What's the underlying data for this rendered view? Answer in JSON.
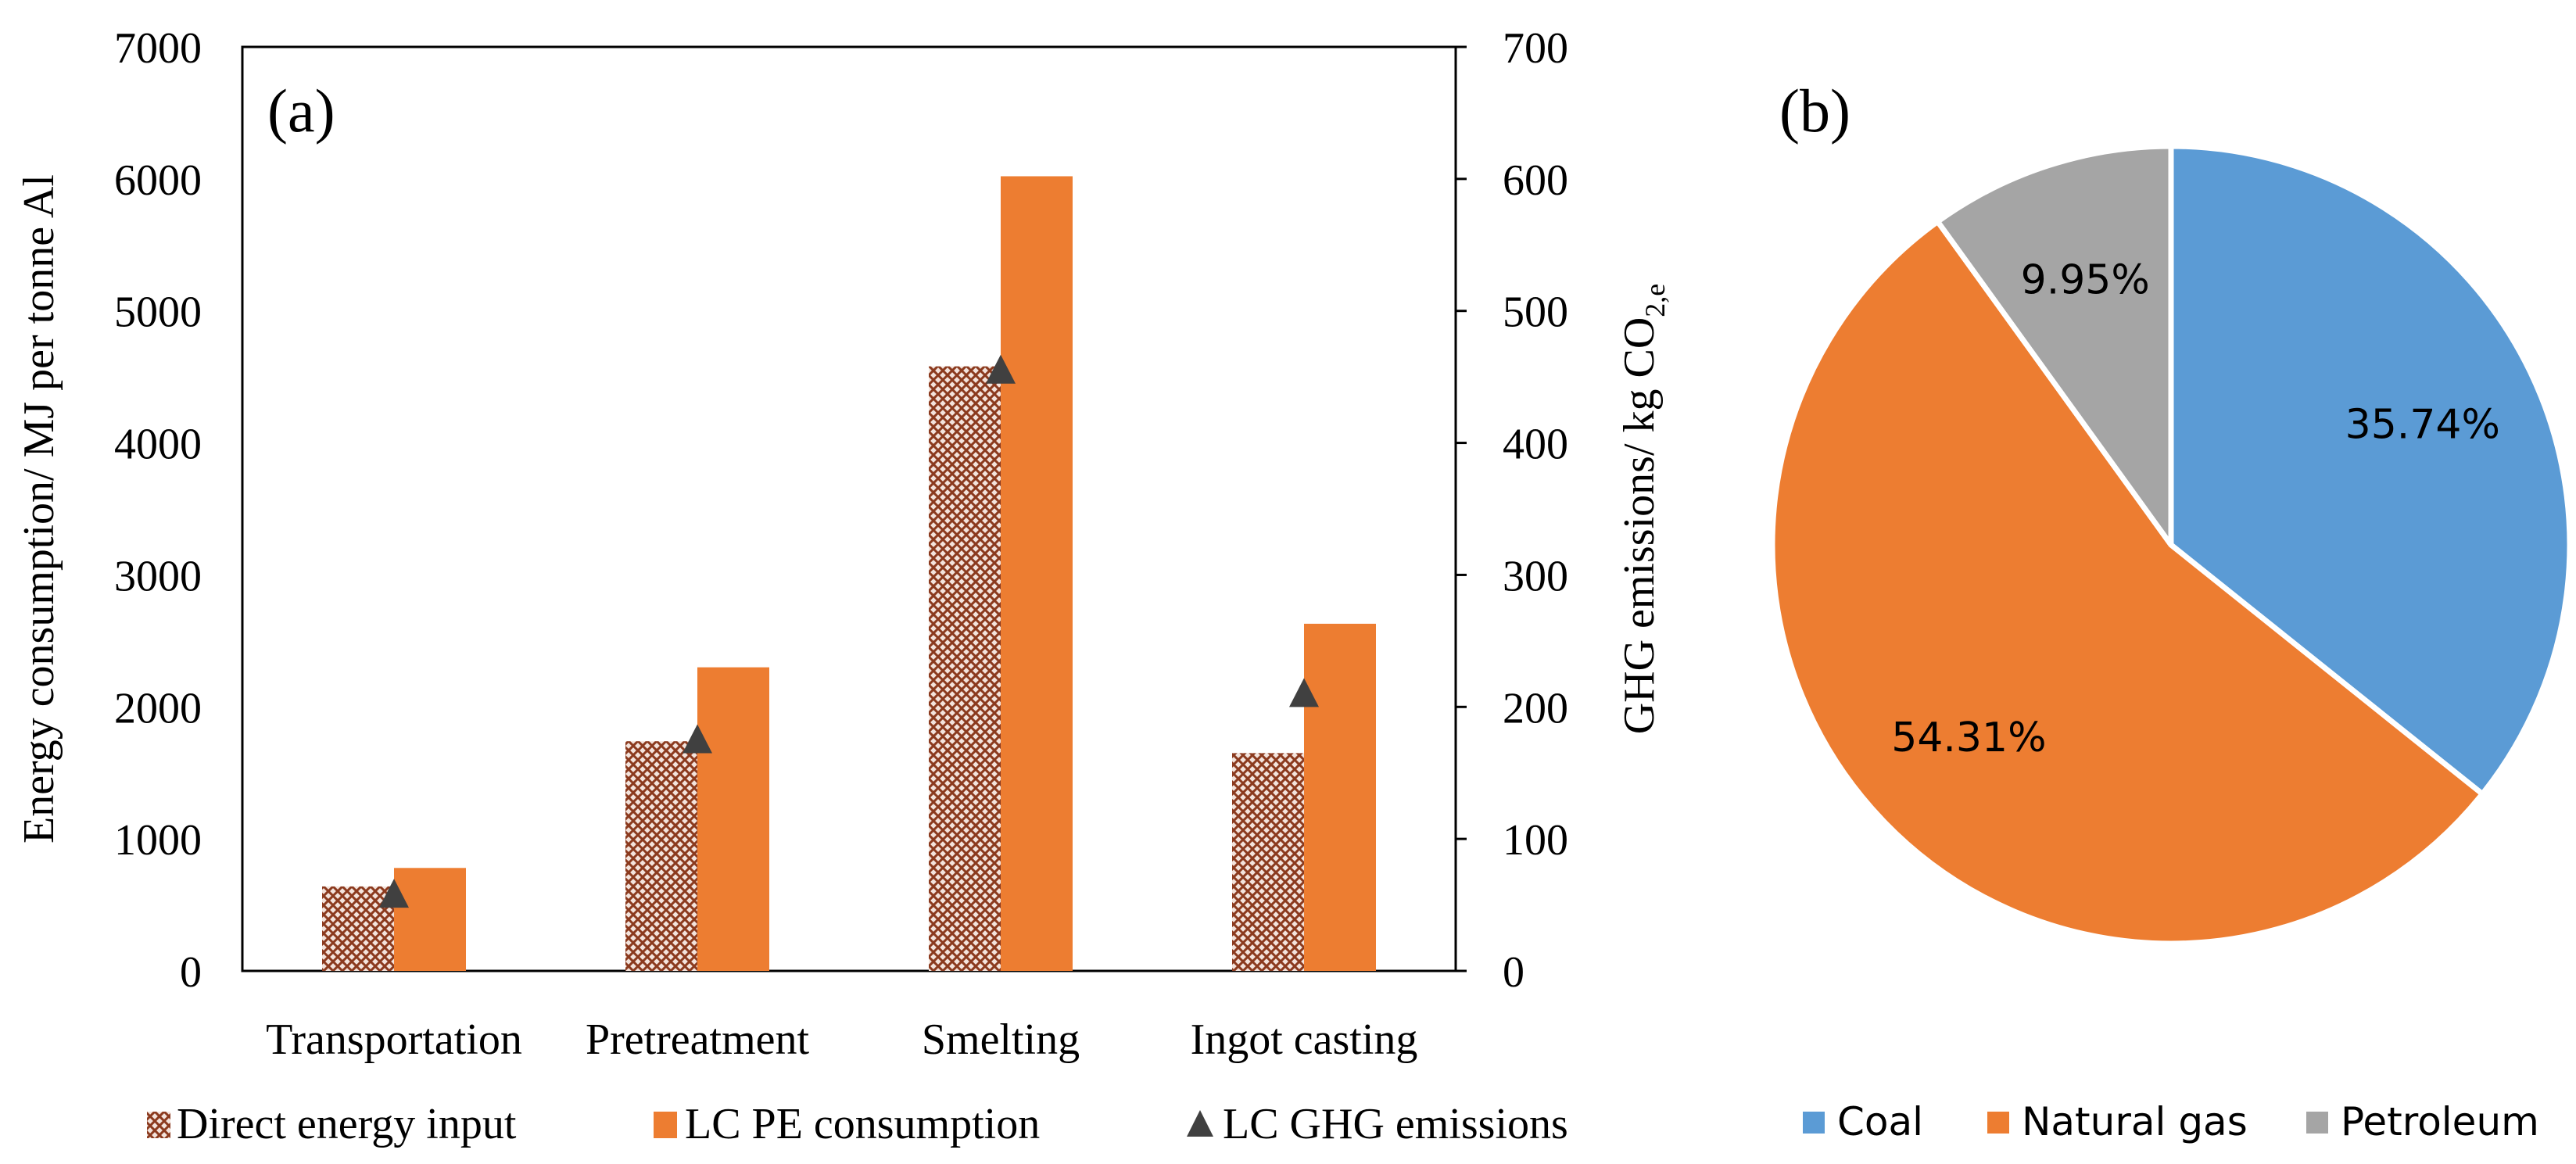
{
  "chart_data": [
    {
      "type": "bar",
      "panel_label": "(a)",
      "categories": [
        "Transportation",
        "Pretreatment",
        "Smelting",
        "Ingot casting"
      ],
      "series": [
        {
          "name": "Direct energy input",
          "kind": "bar",
          "axis": "left",
          "color": "#8B3A1E",
          "pattern": "crosshatch",
          "values": [
            640,
            1740,
            4580,
            1650
          ]
        },
        {
          "name": "LC PE consumption",
          "kind": "bar",
          "axis": "left",
          "color": "#ED7D31",
          "values": [
            780,
            2300,
            6020,
            2630
          ]
        },
        {
          "name": "LC GHG emissions",
          "kind": "marker",
          "axis": "right",
          "color": "#404040",
          "values": [
            58,
            175,
            455,
            210
          ]
        }
      ],
      "ylabel": "Energy consumption/ MJ per tonne Al",
      "ylim": [
        0,
        7000
      ],
      "yticks": [
        0,
        1000,
        2000,
        3000,
        4000,
        5000,
        6000,
        7000
      ],
      "y2label_main": "GHG emissions/ kg CO",
      "y2label_sub": "2,e",
      "y2lim": [
        0,
        700
      ],
      "y2ticks": [
        0,
        100,
        200,
        300,
        400,
        500,
        600,
        700
      ],
      "grid": false,
      "legend": "bottom"
    },
    {
      "type": "pie",
      "panel_label": "(b)",
      "labels": [
        "Coal",
        "Natural gas",
        "Petroleum"
      ],
      "values": [
        35.74,
        54.31,
        9.95
      ],
      "value_labels": [
        "35.74%",
        "54.31%",
        "9.95%"
      ],
      "colors": [
        "#5B9BD5",
        "#ED7D31",
        "#A5A5A5"
      ],
      "legend": "bottom"
    }
  ]
}
